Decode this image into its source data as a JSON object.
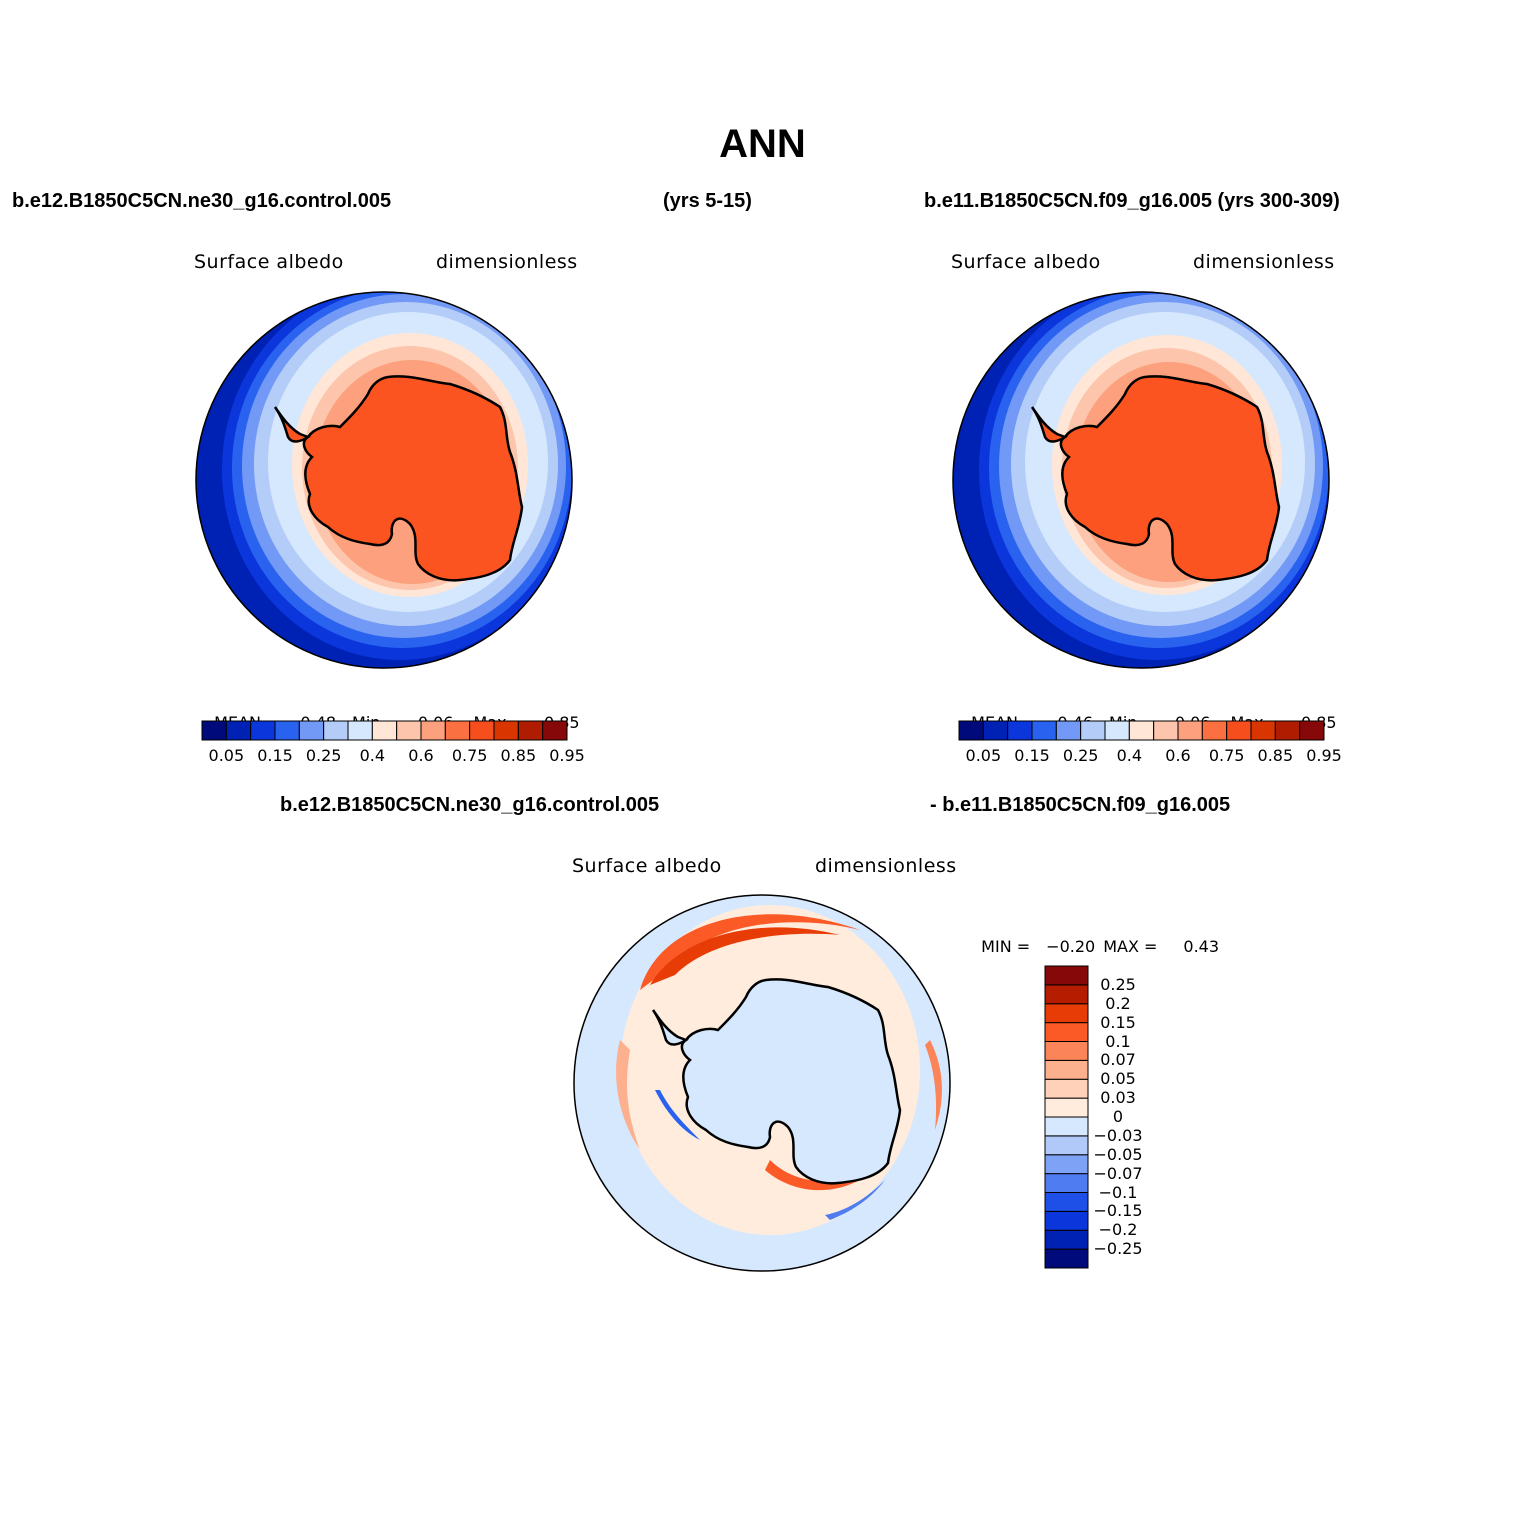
{
  "figure": {
    "title": "ANN",
    "top_left_case": "b.e12.B1850C5CN.ne30_g16.control.005",
    "top_left_years": "(yrs 5-15)",
    "top_right_case": "b.e11.B1850C5CN.f09_g16.005 (yrs 300-309)",
    "diff_case_a": "b.e12.B1850C5CN.ne30_g16.control.005",
    "diff_case_b": "- b.e11.B1850C5CN.f09_g16.005"
  },
  "panels": {
    "left": {
      "variable": "Surface albedo",
      "units": "dimensionless",
      "mean_label": "MEAN=",
      "mean": "0.48",
      "min_label": "Min=",
      "min": "0.06",
      "max_label": "Max=",
      "max": "0.85"
    },
    "right": {
      "variable": "Surface albedo",
      "units": "dimensionless",
      "mean_label": "MEAN=",
      "mean": "0.46",
      "min_label": "Min=",
      "min": "0.06",
      "max_label": "Max=",
      "max": "0.85"
    },
    "diff": {
      "variable": "Surface albedo",
      "units": "dimensionless",
      "min_label": "MIN =",
      "min": "−0.20",
      "max_label": "MAX =",
      "max": "0.43"
    }
  },
  "colorbar_abs": {
    "colors": [
      "#000a7a",
      "#0022b4",
      "#0a36dc",
      "#2a62f0",
      "#7199f5",
      "#b4cdf8",
      "#d6e8fd",
      "#ffe6d6",
      "#fdc5ac",
      "#fca07e",
      "#fb7040",
      "#f74e1e",
      "#d93500",
      "#b01c00",
      "#860808"
    ],
    "labels": [
      "0.05",
      "0.15",
      "0.25",
      "0.4",
      "0.6",
      "0.75",
      "0.85",
      "0.95"
    ]
  },
  "colorbar_diff": {
    "colors": [
      "#000a7a",
      "#0022b4",
      "#0a36dc",
      "#1e50e8",
      "#4f7cf0",
      "#7ea2f5",
      "#b0c9f8",
      "#d6e8fd",
      "#ffecdd",
      "#ffd1b9",
      "#fcb08e",
      "#fb8558",
      "#fb5a26",
      "#e83c06",
      "#b51c00",
      "#860808"
    ],
    "labels": [
      "−0.25",
      "−0.2",
      "−0.15",
      "−0.1",
      "−0.07",
      "−0.05",
      "−0.03",
      "0",
      "0.03",
      "0.05",
      "0.07",
      "0.1",
      "0.15",
      "0.2",
      "0.25"
    ]
  }
}
